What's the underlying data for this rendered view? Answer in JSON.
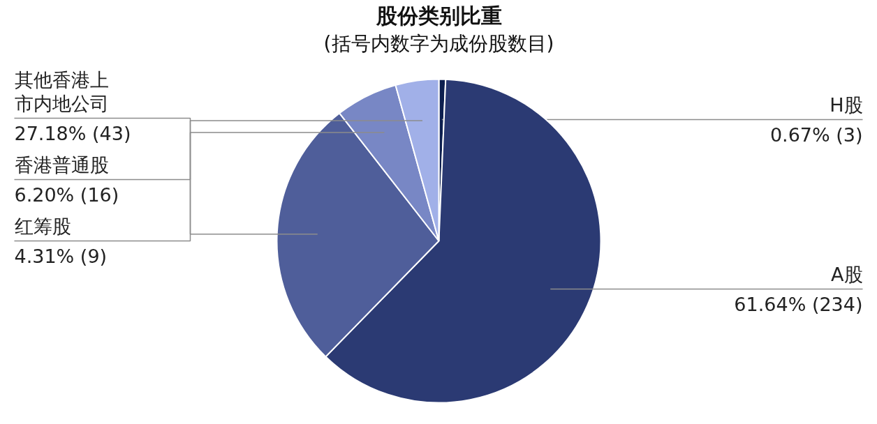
{
  "chart_data": {
    "type": "pie",
    "title": "股份类别比重",
    "subtitle": "(括号内数字为成份股数目)",
    "categories": [
      "H股",
      "A股",
      "其他香港上市内地公司",
      "香港普通股",
      "红筹股"
    ],
    "values": [
      0.67,
      61.64,
      27.18,
      6.2,
      4.31
    ],
    "colors": [
      "#0d1f4f",
      "#2b3a73",
      "#4f5e9a",
      "#7887c5",
      "#a1b0e8"
    ],
    "value_labels": [
      "0.67% (3)",
      "61.64% (234)",
      "27.18% (43)",
      "6.20% (16)",
      "4.31% (9)"
    ]
  }
}
